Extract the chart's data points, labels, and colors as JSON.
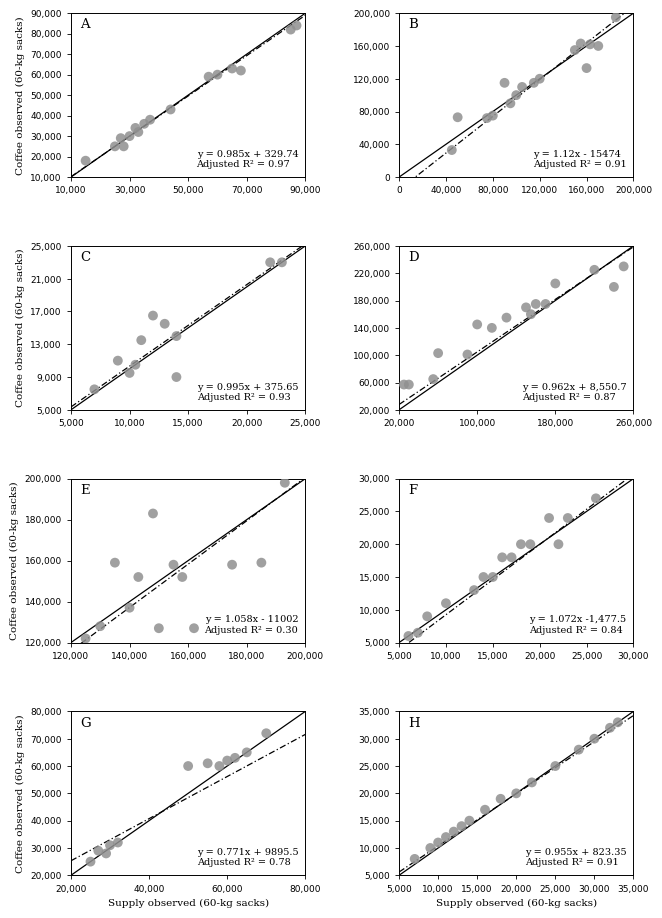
{
  "panels": [
    {
      "label": "A",
      "xlim": [
        10000,
        90000
      ],
      "ylim": [
        10000,
        90000
      ],
      "xticks": [
        10000,
        30000,
        50000,
        70000,
        90000
      ],
      "yticks": [
        10000,
        20000,
        30000,
        40000,
        50000,
        60000,
        70000,
        80000,
        90000
      ],
      "equation": "y = 0.985x + 329.74",
      "r2": "Adjusted R² = 0.97",
      "slope": 0.985,
      "intercept": 329.74,
      "scatter_x": [
        15000,
        25000,
        27000,
        28000,
        30000,
        32000,
        33000,
        35000,
        37000,
        44000,
        57000,
        60000,
        65000,
        68000,
        85000,
        87000
      ],
      "scatter_y": [
        18000,
        25000,
        29000,
        25000,
        30000,
        34000,
        32000,
        36000,
        38000,
        43000,
        59000,
        60000,
        63000,
        62000,
        82000,
        84000
      ]
    },
    {
      "label": "B",
      "xlim": [
        0,
        200000
      ],
      "ylim": [
        0,
        200000
      ],
      "xticks": [
        0,
        40000,
        80000,
        120000,
        160000,
        200000
      ],
      "yticks": [
        0,
        40000,
        80000,
        120000,
        160000,
        200000
      ],
      "equation": "y = 1.12x - 15474",
      "r2": "Adjusted R² = 0.91",
      "slope": 1.12,
      "intercept": -15474,
      "scatter_x": [
        45000,
        50000,
        75000,
        80000,
        90000,
        95000,
        100000,
        105000,
        115000,
        120000,
        150000,
        155000,
        160000,
        163000,
        170000,
        185000
      ],
      "scatter_y": [
        33000,
        73000,
        72000,
        75000,
        115000,
        90000,
        100000,
        110000,
        115000,
        120000,
        155000,
        163000,
        133000,
        162000,
        160000,
        195000
      ]
    },
    {
      "label": "C",
      "xlim": [
        5000,
        25000
      ],
      "ylim": [
        5000,
        25000
      ],
      "xticks": [
        5000,
        10000,
        15000,
        20000,
        25000
      ],
      "yticks": [
        5000,
        9000,
        13000,
        17000,
        21000,
        25000
      ],
      "equation": "y = 0.995x + 375.65",
      "r2": "Adjusted R² = 0.93",
      "slope": 0.995,
      "intercept": 375.65,
      "scatter_x": [
        7000,
        9000,
        10000,
        10500,
        11000,
        12000,
        13000,
        14000,
        14000,
        22000,
        23000
      ],
      "scatter_y": [
        7500,
        11000,
        9500,
        10500,
        13500,
        16500,
        15500,
        14000,
        9000,
        23000,
        23000
      ]
    },
    {
      "label": "D",
      "xlim": [
        20000,
        260000
      ],
      "ylim": [
        20000,
        260000
      ],
      "xticks": [
        20000,
        100000,
        180000,
        260000
      ],
      "yticks": [
        20000,
        60000,
        100000,
        140000,
        180000,
        220000,
        260000
      ],
      "equation": "y = 0.962x + 8,550.7",
      "r2": "Adjusted R² = 0.87",
      "slope": 0.962,
      "intercept": 8550.7,
      "scatter_x": [
        25000,
        30000,
        55000,
        60000,
        90000,
        100000,
        115000,
        130000,
        150000,
        155000,
        160000,
        170000,
        180000,
        220000,
        240000,
        250000
      ],
      "scatter_y": [
        57000,
        57000,
        65000,
        103000,
        101000,
        145000,
        140000,
        155000,
        170000,
        160000,
        175000,
        175000,
        205000,
        225000,
        200000,
        230000
      ]
    },
    {
      "label": "E",
      "xlim": [
        120000,
        200000
      ],
      "ylim": [
        120000,
        200000
      ],
      "xticks": [
        120000,
        140000,
        160000,
        180000,
        200000
      ],
      "yticks": [
        120000,
        140000,
        160000,
        180000,
        200000
      ],
      "equation": "y = 1.058x - 11002",
      "r2": "Adjusted R² = 0.30",
      "slope": 1.058,
      "intercept": -11002,
      "scatter_x": [
        125000,
        130000,
        135000,
        140000,
        143000,
        148000,
        150000,
        155000,
        158000,
        162000,
        175000,
        185000,
        193000
      ],
      "scatter_y": [
        122000,
        128000,
        159000,
        137000,
        152000,
        183000,
        127000,
        158000,
        152000,
        127000,
        158000,
        159000,
        198000
      ]
    },
    {
      "label": "F",
      "xlim": [
        5000,
        30000
      ],
      "ylim": [
        5000,
        30000
      ],
      "xticks": [
        5000,
        10000,
        15000,
        20000,
        25000,
        30000
      ],
      "yticks": [
        5000,
        10000,
        15000,
        20000,
        25000,
        30000
      ],
      "equation": "y = 1.072x -1,477.5",
      "r2": "Adjusted R² = 0.84",
      "slope": 1.072,
      "intercept": -1477.5,
      "scatter_x": [
        6000,
        7000,
        8000,
        10000,
        13000,
        14000,
        15000,
        16000,
        17000,
        18000,
        19000,
        21000,
        22000,
        23000,
        26000
      ],
      "scatter_y": [
        6000,
        6500,
        9000,
        11000,
        13000,
        15000,
        15000,
        18000,
        18000,
        20000,
        20000,
        24000,
        20000,
        24000,
        27000
      ]
    },
    {
      "label": "G",
      "xlim": [
        20000,
        80000
      ],
      "ylim": [
        20000,
        80000
      ],
      "xticks": [
        20000,
        40000,
        60000,
        80000
      ],
      "yticks": [
        20000,
        30000,
        40000,
        50000,
        60000,
        70000,
        80000
      ],
      "equation": "y = 0.771x + 9895.5",
      "r2": "Adjusted R² = 0.78",
      "slope": 0.771,
      "intercept": 9895.5,
      "scatter_x": [
        25000,
        27000,
        29000,
        30000,
        32000,
        50000,
        55000,
        58000,
        60000,
        62000,
        65000,
        70000
      ],
      "scatter_y": [
        25000,
        29000,
        28000,
        31000,
        32000,
        60000,
        61000,
        60000,
        62000,
        63000,
        65000,
        72000
      ]
    },
    {
      "label": "H",
      "xlim": [
        5000,
        35000
      ],
      "ylim": [
        5000,
        35000
      ],
      "xticks": [
        5000,
        10000,
        15000,
        20000,
        25000,
        30000,
        35000
      ],
      "yticks": [
        5000,
        10000,
        15000,
        20000,
        25000,
        30000,
        35000
      ],
      "equation": "y = 0.955x + 823.35",
      "r2": "Adjusted R² = 0.91",
      "slope": 0.955,
      "intercept": 823.35,
      "scatter_x": [
        7000,
        9000,
        10000,
        11000,
        12000,
        13000,
        14000,
        16000,
        18000,
        20000,
        22000,
        25000,
        28000,
        30000,
        32000,
        33000
      ],
      "scatter_y": [
        8000,
        10000,
        11000,
        12000,
        13000,
        14000,
        15000,
        17000,
        19000,
        20000,
        22000,
        25000,
        28000,
        30000,
        32000,
        33000
      ]
    }
  ],
  "scatter_color": "#909090",
  "scatter_size": 50,
  "line_color": "#000000",
  "dot_line_color": "#000000",
  "ylabel": "Coffee observed (60-kg sacks)",
  "xlabel_left": "Supply observed (60-kg sacks)",
  "xlabel_right": "Supply observed (60-kg sacks)",
  "eq_fontsize": 7.0,
  "label_fontsize": 8.5,
  "tick_fontsize": 6.5
}
